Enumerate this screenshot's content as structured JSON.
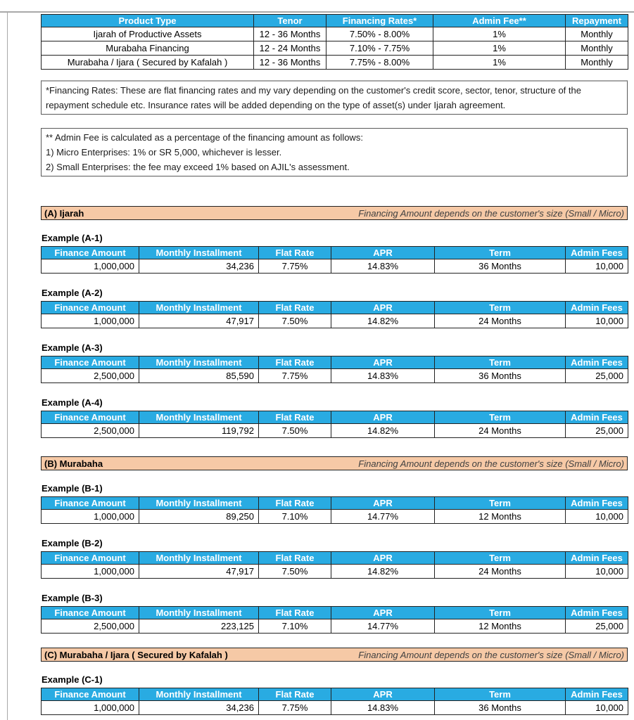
{
  "colors": {
    "header_blue": "#29ABE2",
    "band_peach": "#F6C9A6"
  },
  "products_table": {
    "headers": [
      "Product Type",
      "Tenor",
      "Financing Rates*",
      "Admin Fee**",
      "Repayment"
    ],
    "rows": [
      [
        "Ijarah of Productive Assets",
        "12 - 36 Months",
        "7.50% - 8.00%",
        "1%",
        "Monthly"
      ],
      [
        "Murabaha Financing",
        "12 - 24 Months",
        "7.10% - 7.75%",
        "1%",
        "Monthly"
      ],
      [
        "Murabaha / Ijara ( Secured by Kafalah )",
        "12 - 36 Months",
        "7.75% - 8.00%",
        "1%",
        "Monthly"
      ]
    ]
  },
  "footnotes": {
    "financing_rates": "*Financing Rates: These are flat financing rates and my vary depending on the customer's credit score, sector, tenor, structure of the repayment schedule etc. Insurance rates will be added depending on the type of asset(s) under Ijarah agreement.",
    "admin_fee_lines": [
      "** Admin Fee is calculated as a percentage of the financing amount as follows:",
      "1) Micro Enterprises: 1% or SR 5,000, whichever is lesser.",
      "2) Small Enterprises: the fee may exceed 1% based on AJIL's assessment."
    ]
  },
  "example_headers": [
    "Finance Amount",
    "Monthly Installment",
    "Flat Rate",
    "APR",
    "Term",
    "Admin Fees"
  ],
  "sections": [
    {
      "title": "(A) Ijarah",
      "note": "Financing Amount depends on the customer's size (Small / Micro)",
      "examples": [
        {
          "label": "Example (A-1)",
          "finance_amount": "1,000,000",
          "monthly_installment": "34,236",
          "flat_rate": "7.75%",
          "apr": "14.83%",
          "term": "36 Months",
          "admin_fees": "10,000"
        },
        {
          "label": "Example (A-2)",
          "finance_amount": "1,000,000",
          "monthly_installment": "47,917",
          "flat_rate": "7.50%",
          "apr": "14.82%",
          "term": "24 Months",
          "admin_fees": "10,000"
        },
        {
          "label": "Example (A-3)",
          "finance_amount": "2,500,000",
          "monthly_installment": "85,590",
          "flat_rate": "7.75%",
          "apr": "14.83%",
          "term": "36 Months",
          "admin_fees": "25,000"
        },
        {
          "label": "Example (A-4)",
          "finance_amount": "2,500,000",
          "monthly_installment": "119,792",
          "flat_rate": "7.50%",
          "apr": "14.82%",
          "term": "24 Months",
          "admin_fees": "25,000"
        }
      ]
    },
    {
      "title": "(B) Murabaha",
      "note": "Financing Amount depends on the customer's size (Small / Micro)",
      "examples": [
        {
          "label": "Example (B-1)",
          "finance_amount": "1,000,000",
          "monthly_installment": "89,250",
          "flat_rate": "7.10%",
          "apr": "14.77%",
          "term": "12 Months",
          "admin_fees": "10,000"
        },
        {
          "label": "Example (B-2)",
          "finance_amount": "1,000,000",
          "monthly_installment": "47,917",
          "flat_rate": "7.50%",
          "apr": "14.82%",
          "term": "24 Months",
          "admin_fees": "10,000"
        },
        {
          "label": "Example (B-3)",
          "finance_amount": "2,500,000",
          "monthly_installment": "223,125",
          "flat_rate": "7.10%",
          "apr": "14.77%",
          "term": "12 Months",
          "admin_fees": "25,000"
        }
      ]
    },
    {
      "title": "(C) Murabaha / Ijara ( Secured by Kafalah )",
      "note": "Financing Amount depends on the customer's size (Small / Micro)",
      "examples": [
        {
          "label": "Example (C-1)",
          "finance_amount": "1,000,000",
          "monthly_installment": "34,236",
          "flat_rate": "7.75%",
          "apr": "14.83%",
          "term": "36 Months",
          "admin_fees": "10,000"
        }
      ]
    }
  ]
}
